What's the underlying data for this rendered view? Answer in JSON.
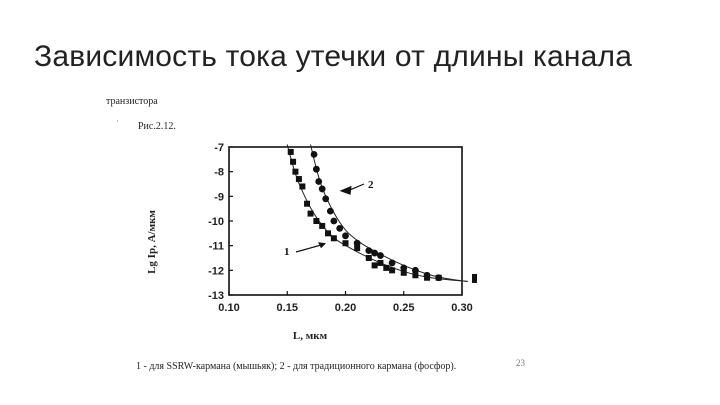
{
  "slide": {
    "title": "Зависимость тока утечки от длины канала"
  },
  "figure": {
    "header": "транзистора",
    "caption_top": "Рис.2.12.",
    "caption_bottom": "1 - для SSRW-кармана (мышьяк); 2 - для традиционного кармана (фосфор).",
    "page_number": "23"
  },
  "chart_data": {
    "type": "scatter",
    "title": "",
    "xlabel": "L, мкм",
    "ylabel": "Lg Ip, А/мкм",
    "xlim": [
      0.1,
      0.3
    ],
    "ylim": [
      -13,
      -7
    ],
    "x_ticks": [
      "0.10",
      "0.15",
      "0.20",
      "0.25",
      "0.30"
    ],
    "y_ticks": [
      "-7",
      "-8",
      "-9",
      "-10",
      "-11",
      "-12",
      "-13"
    ],
    "grid": false,
    "series": [
      {
        "name": "1",
        "marker": "square",
        "x": [
          0.153,
          0.155,
          0.157,
          0.16,
          0.163,
          0.167,
          0.17,
          0.175,
          0.18,
          0.185,
          0.19,
          0.2,
          0.21,
          0.22,
          0.225,
          0.23,
          0.235,
          0.24,
          0.25,
          0.26,
          0.27,
          0.28
        ],
        "y": [
          -7.2,
          -7.6,
          -8.0,
          -8.3,
          -8.6,
          -9.3,
          -9.7,
          -10.0,
          -10.2,
          -10.5,
          -10.7,
          -10.9,
          -11.1,
          -11.5,
          -11.8,
          -11.7,
          -11.9,
          -12.0,
          -12.1,
          -12.2,
          -12.3,
          -12.3
        ]
      },
      {
        "name": "2",
        "marker": "circle",
        "x": [
          0.173,
          0.175,
          0.177,
          0.18,
          0.183,
          0.187,
          0.19,
          0.195,
          0.2,
          0.21,
          0.22,
          0.225,
          0.23,
          0.24,
          0.25,
          0.26,
          0.27,
          0.28
        ],
        "y": [
          -7.3,
          -7.9,
          -8.4,
          -8.7,
          -9.1,
          -9.6,
          -10.0,
          -10.3,
          -10.6,
          -10.9,
          -11.2,
          -11.3,
          -11.4,
          -11.7,
          -11.9,
          -12.0,
          -12.2,
          -12.3
        ]
      }
    ],
    "fit_curves": [
      {
        "x": [
          0.15,
          0.155,
          0.16,
          0.17,
          0.18,
          0.19,
          0.2,
          0.22,
          0.24,
          0.26,
          0.28,
          0.305
        ],
        "y": [
          -6.9,
          -7.8,
          -8.5,
          -9.5,
          -10.2,
          -10.7,
          -11.0,
          -11.5,
          -11.9,
          -12.2,
          -12.35,
          -12.45
        ]
      },
      {
        "x": [
          0.17,
          0.175,
          0.18,
          0.19,
          0.2,
          0.21,
          0.22,
          0.24,
          0.26,
          0.28,
          0.305
        ],
        "y": [
          -6.9,
          -7.9,
          -8.7,
          -9.7,
          -10.4,
          -10.8,
          -11.1,
          -11.6,
          -12.0,
          -12.3,
          -12.45
        ]
      }
    ],
    "annotations": [
      {
        "text": "1",
        "points_to": [
          0.185,
          -10.9
        ]
      },
      {
        "text": "2",
        "points_to": [
          0.188,
          -8.7
        ]
      }
    ]
  }
}
